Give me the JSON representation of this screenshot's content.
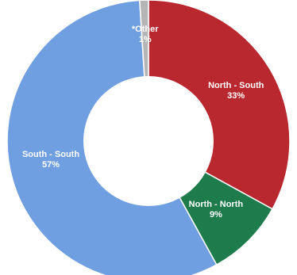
{
  "chart_data": {
    "type": "pie",
    "donut": true,
    "title": "",
    "categories": [
      "North - South",
      "North - North",
      "South - South",
      "*Other"
    ],
    "values": [
      33,
      9,
      57,
      1
    ],
    "value_labels": [
      "33%",
      "9%",
      "57%",
      "1%"
    ],
    "colors": [
      "#b8282e",
      "#1e7b4b",
      "#6f9fe0",
      "#b5b5b5"
    ],
    "start_angle_deg": 0,
    "legend": "none"
  }
}
